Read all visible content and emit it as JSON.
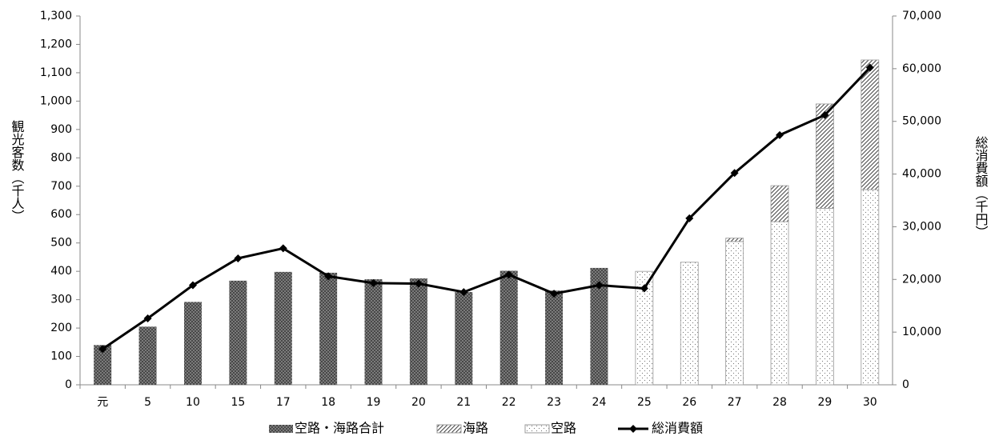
{
  "chart_data": {
    "type": "bar",
    "categories": [
      "元",
      "5",
      "10",
      "15",
      "17",
      "18",
      "19",
      "20",
      "21",
      "22",
      "23",
      "24",
      "25",
      "26",
      "27",
      "28",
      "29",
      "30"
    ],
    "ylabel": "観光客数（千人）",
    "y2label": "総消費額（千円）",
    "ylim": [
      0,
      1300
    ],
    "yticks": [
      0,
      100,
      200,
      300,
      400,
      500,
      600,
      700,
      800,
      900,
      {
        "value": 1000,
        "label": "1,000"
      },
      {
        "value": 1100,
        "label": "1,100"
      },
      {
        "value": 1200,
        "label": "1,200"
      },
      {
        "value": 1300,
        "label": "1,300"
      }
    ],
    "y2lim": [
      0,
      70000
    ],
    "y2ticks": [
      0,
      {
        "value": 10000,
        "label": "10,000"
      },
      {
        "value": 20000,
        "label": "20,000"
      },
      {
        "value": 30000,
        "label": "30,000"
      },
      {
        "value": 40000,
        "label": "40,000"
      },
      {
        "value": 50000,
        "label": "50,000"
      },
      {
        "value": 60000,
        "label": "60,000"
      },
      {
        "value": 70000,
        "label": "70,000"
      }
    ],
    "series": [
      {
        "name": "空路・海路合計",
        "color": "#3a3a3a",
        "values": [
          140,
          205,
          292,
          367,
          398,
          395,
          372,
          375,
          327,
          402,
          332,
          412,
          null,
          null,
          null,
          null,
          null,
          null
        ]
      },
      {
        "name": "海路",
        "color": "#555555",
        "values": [
          null,
          null,
          null,
          null,
          null,
          null,
          null,
          null,
          null,
          null,
          null,
          null,
          0,
          0,
          12,
          127,
          368,
          457
        ]
      },
      {
        "name": "空路",
        "color": "#888888",
        "values": [
          null,
          null,
          null,
          null,
          null,
          null,
          null,
          null,
          null,
          null,
          null,
          null,
          400,
          432,
          505,
          575,
          622,
          688
        ]
      },
      {
        "name": "総消費額",
        "type": "line",
        "axis": "y2",
        "color": "#000000",
        "values": [
          6800,
          12600,
          18900,
          24000,
          25900,
          20600,
          19300,
          19200,
          17600,
          20900,
          17300,
          18900,
          18300,
          31600,
          40200,
          47400,
          51200,
          60200
        ]
      }
    ]
  }
}
